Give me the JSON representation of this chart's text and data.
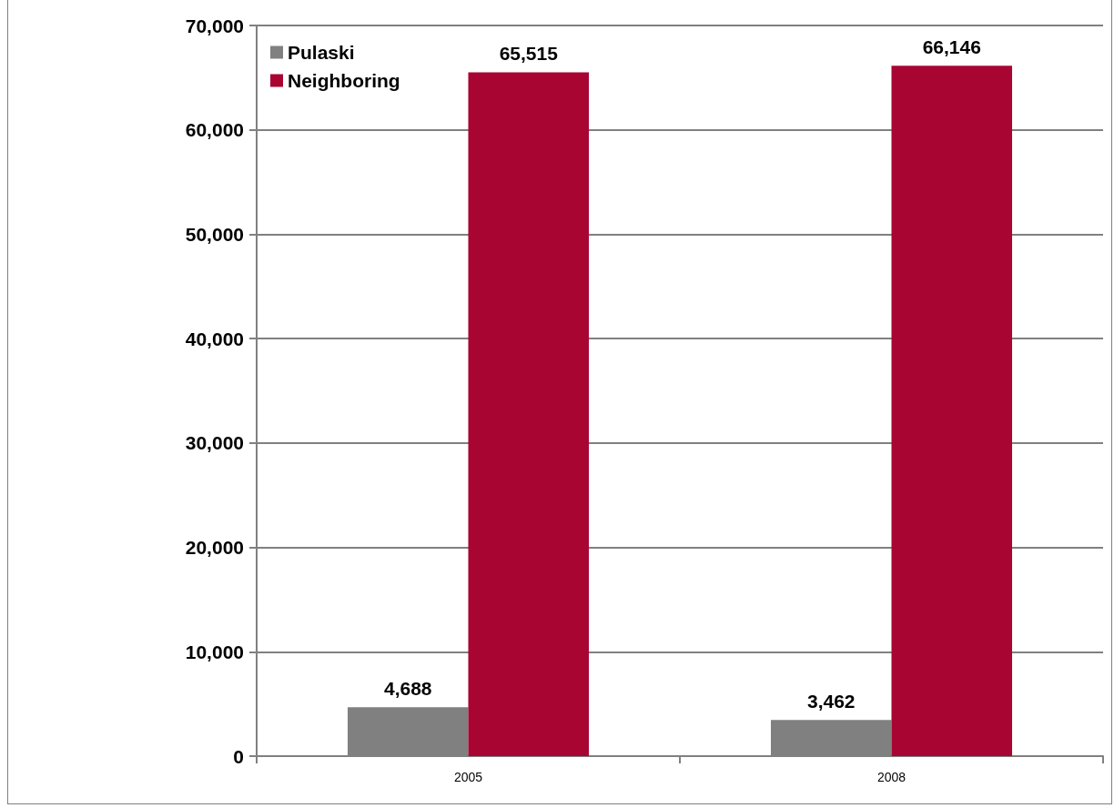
{
  "chart_data": {
    "type": "bar",
    "categories": [
      "2005",
      "2008"
    ],
    "series": [
      {
        "name": "Pulaski",
        "color": "#808080",
        "values": [
          4688,
          3462
        ],
        "value_labels": [
          "4,688",
          "3,462"
        ]
      },
      {
        "name": "Neighboring",
        "color": "#a80533",
        "values": [
          65515,
          66146
        ],
        "value_labels": [
          "65,515",
          "66,146"
        ]
      }
    ],
    "ylim": [
      0,
      70000
    ],
    "yticks": [
      {
        "value": 0,
        "label": "0"
      },
      {
        "value": 10000,
        "label": "10,000"
      },
      {
        "value": 20000,
        "label": "20,000"
      },
      {
        "value": 30000,
        "label": "30,000"
      },
      {
        "value": 40000,
        "label": "40,000"
      },
      {
        "value": 50000,
        "label": "50,000"
      },
      {
        "value": 60000,
        "label": "60,000"
      },
      {
        "value": 70000,
        "label": "70,000"
      }
    ],
    "grid": "y",
    "legend": "top left"
  }
}
